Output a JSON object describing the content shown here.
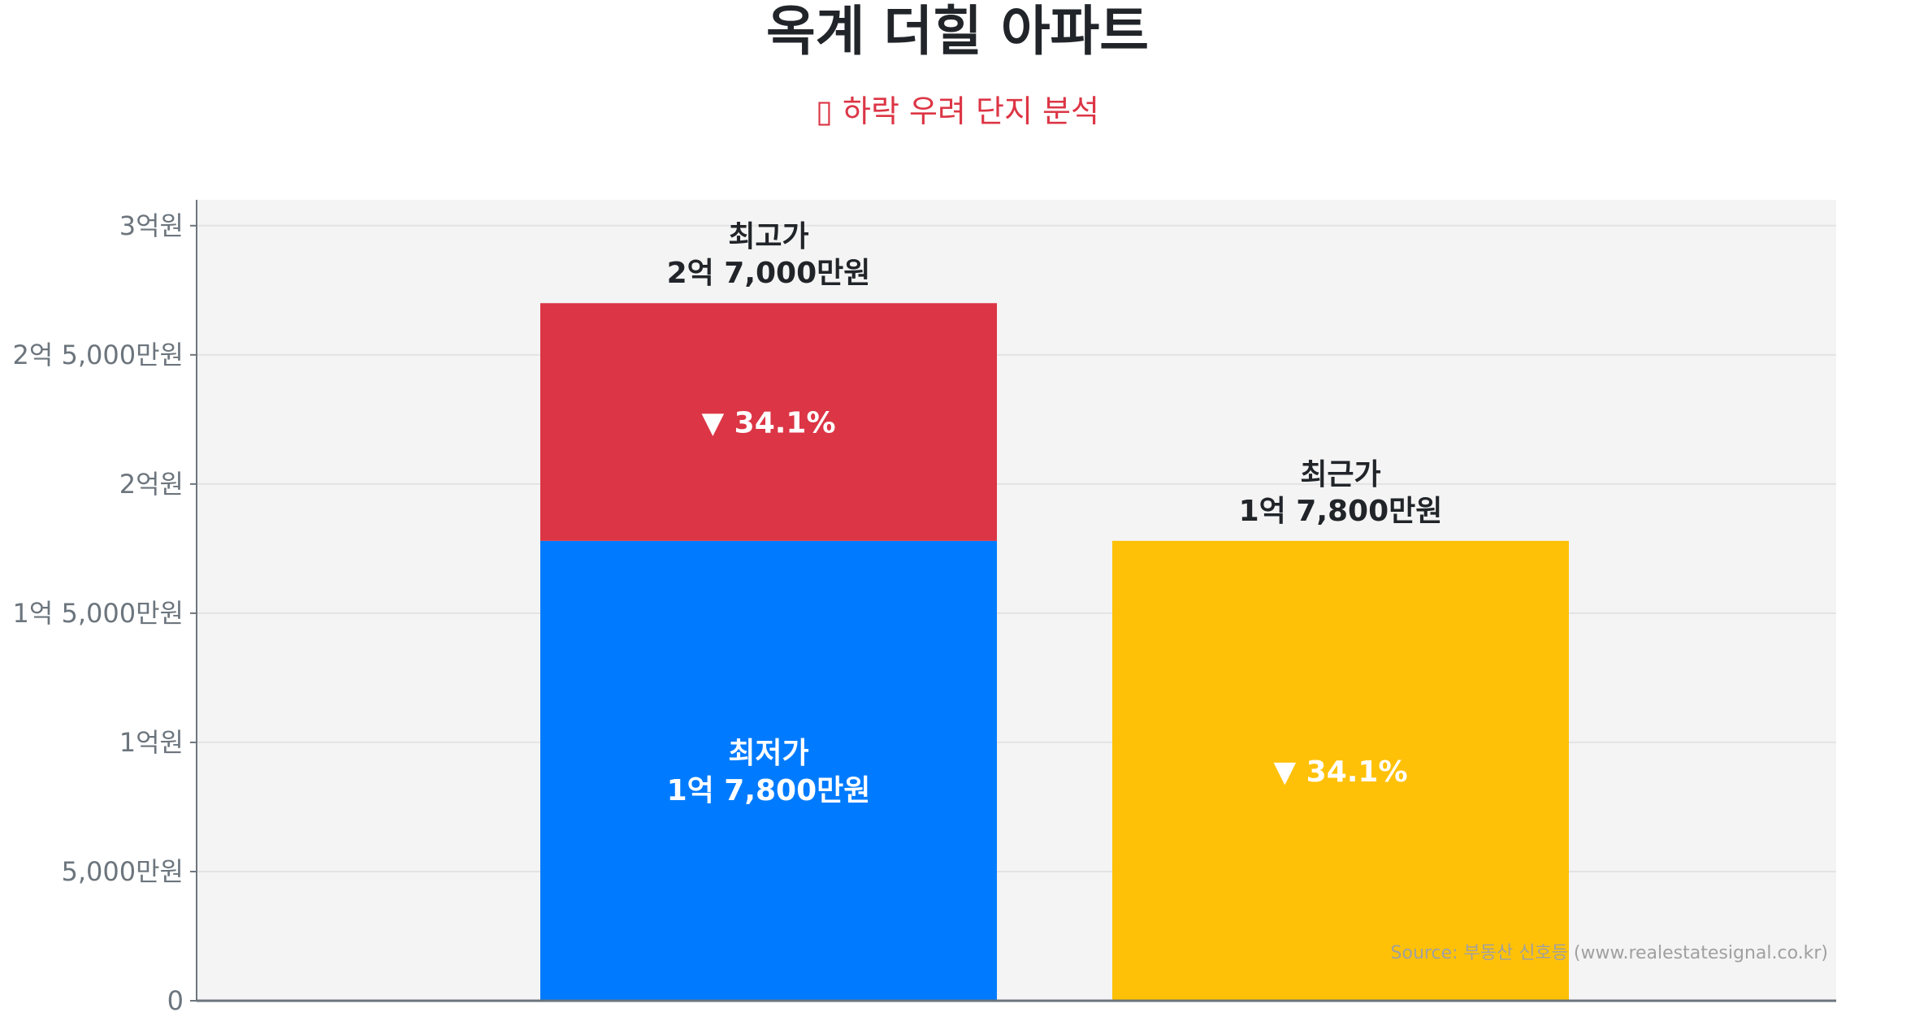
{
  "title": "옥계 더힐 아파트",
  "subtitle": "▯ 하락 우려 단지 분석",
  "chart_data": {
    "type": "bar",
    "stacked": true,
    "unit": "만원",
    "ylim": [
      0,
      31000
    ],
    "yticks": [
      0,
      5000,
      10000,
      15000,
      20000,
      25000,
      30000
    ],
    "ytick_labels": [
      "0",
      "5,000만원",
      "1억원",
      "1억 5,000만원",
      "2억원",
      "2억 5,000만원",
      "3억원"
    ],
    "grid": true,
    "bars": [
      {
        "segments": [
          {
            "value": 17800,
            "color": "#007bff",
            "label_line1": "최저가",
            "label_line2": "1억 7,800만원"
          },
          {
            "value": 9200,
            "color": "#dc3545",
            "label_line1": "▼ 34.1%",
            "label_line2": ""
          }
        ],
        "top_label_line1": "최고가",
        "top_label_line2": "2억 7,000만원"
      },
      {
        "segments": [
          {
            "value": 17800,
            "color": "#ffc107",
            "label_line1": "▼ 34.1%",
            "label_line2": ""
          }
        ],
        "top_label_line1": "최근가",
        "top_label_line2": "1억 7,800만원"
      }
    ],
    "source": "Source: 부동산 신호등 (www.realestatesignal.co.kr)"
  }
}
